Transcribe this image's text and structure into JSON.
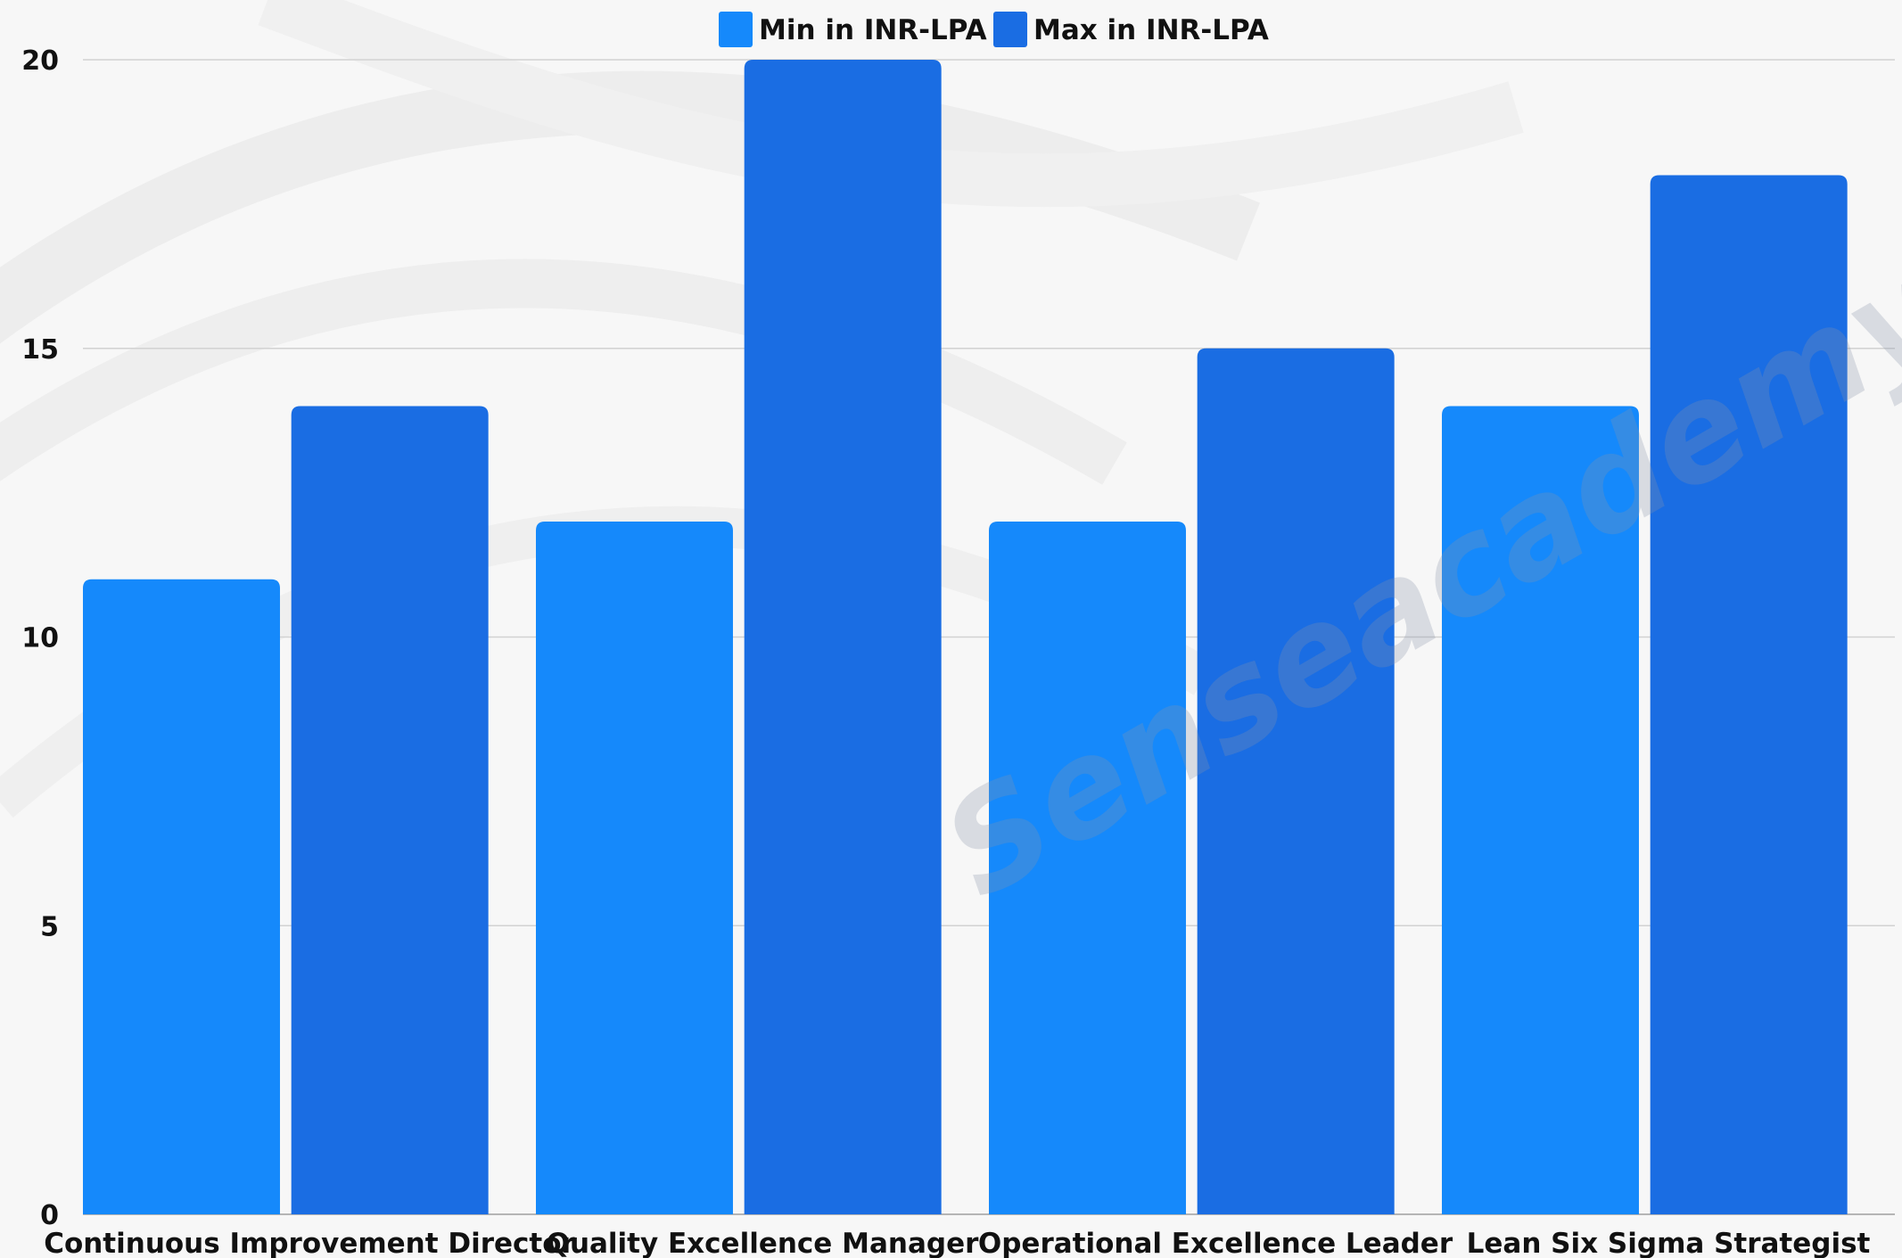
{
  "chart_data": {
    "type": "bar",
    "title": "",
    "xlabel": "",
    "ylabel": "",
    "categories": [
      "Continuous Improvement Director",
      "Quality Excellence Manager",
      "Operational Excellence Leader",
      "Lean Six Sigma Strategist"
    ],
    "series": [
      {
        "name": "Min in INR-LPA",
        "values": [
          11,
          12,
          12,
          14
        ],
        "color": "#1589fb"
      },
      {
        "name": "Max in INR-LPA",
        "values": [
          14,
          20,
          15,
          18
        ],
        "color": "#1a6de3"
      }
    ],
    "ylim": [
      0,
      20
    ],
    "yticks": [
      0,
      5,
      10,
      15,
      20
    ],
    "grid": true,
    "legend": "top-center"
  },
  "watermark": {
    "text": "Senseacademy"
  }
}
